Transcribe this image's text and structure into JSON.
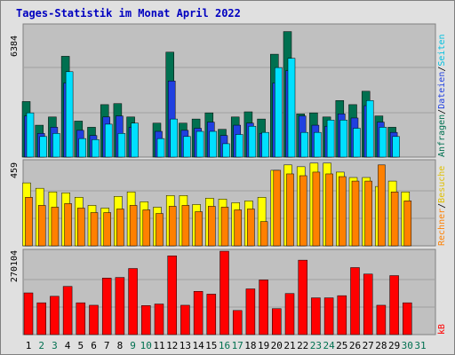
{
  "title": "Tages-Statistik im Monat April 2022",
  "colors": {
    "background": "#e0e0e0",
    "plot_bg": "#c0c0c0",
    "title": "#0000c0",
    "anfragen": "#007050",
    "dateien": "#2040e0",
    "seiten": "#00e0ff",
    "besuche": "#ffff00",
    "rechner": "#ff8000",
    "kb": "#ff0000",
    "weekend_label": "#007050",
    "weekday_label": "#000000"
  },
  "legend": {
    "panel1": [
      {
        "text": "Anfragen",
        "color": "#007050"
      },
      {
        "text": "/",
        "color": "#000000"
      },
      {
        "text": "Dateien",
        "color": "#2040e0"
      },
      {
        "text": "/",
        "color": "#000000"
      },
      {
        "text": "Seiten",
        "color": "#00c0e0"
      }
    ],
    "panel2": [
      {
        "text": "Rechner",
        "color": "#ff8000"
      },
      {
        "text": "/",
        "color": "#000000"
      },
      {
        "text": "Besuche",
        "color": "#e0c000"
      }
    ],
    "panel3": [
      {
        "text": "kB",
        "color": "#ff0000"
      }
    ]
  },
  "chart_data": [
    {
      "type": "bar",
      "ymax_label": "6384",
      "ylim": [
        0,
        6384
      ],
      "categories": [
        "1",
        "2",
        "3",
        "4",
        "5",
        "6",
        "7",
        "8",
        "9",
        "10",
        "11",
        "12",
        "13",
        "14",
        "15",
        "16",
        "17",
        "18",
        "19",
        "20",
        "21",
        "22",
        "23",
        "24",
        "25",
        "26",
        "27",
        "28",
        "29",
        "30",
        "31"
      ],
      "weekend": [
        false,
        true,
        true,
        false,
        false,
        false,
        false,
        false,
        true,
        true,
        false,
        false,
        false,
        false,
        false,
        true,
        true,
        false,
        false,
        false,
        false,
        false,
        true,
        true,
        false,
        false,
        false,
        false,
        false,
        true,
        true
      ],
      "series": [
        {
          "name": "Anfragen",
          "values": [
            2700,
            1550,
            1950,
            4900,
            1750,
            1450,
            2550,
            2600,
            1950,
            null,
            1650,
            5100,
            1650,
            1850,
            2150,
            1350,
            1950,
            2200,
            1850,
            5000,
            6100,
            2100,
            2150,
            1950,
            2750,
            2550,
            3200,
            2000,
            1450,
            null,
            null
          ]
        },
        {
          "name": "Dateien",
          "values": [
            2000,
            1150,
            1450,
            3600,
            1300,
            1050,
            1950,
            2000,
            1450,
            null,
            1250,
            3700,
            1300,
            1400,
            1700,
            1050,
            1550,
            1650,
            1150,
            3600,
            4200,
            2000,
            1550,
            1500,
            2100,
            1900,
            2500,
            1700,
            1200,
            null,
            null
          ]
        },
        {
          "name": "Seiten",
          "values": [
            2150,
            1000,
            1150,
            4150,
            900,
            850,
            1600,
            1150,
            1650,
            null,
            900,
            1850,
            1000,
            1250,
            1250,
            650,
            1100,
            1500,
            1200,
            4350,
            4800,
            1200,
            1200,
            1800,
            1800,
            1400,
            2750,
            1450,
            1000,
            null,
            null
          ]
        }
      ]
    },
    {
      "type": "bar",
      "ymax_label": "459",
      "ylim": [
        0,
        459
      ],
      "categories": [
        "1",
        "2",
        "3",
        "4",
        "5",
        "6",
        "7",
        "8",
        "9",
        "10",
        "11",
        "12",
        "13",
        "14",
        "15",
        "16",
        "17",
        "18",
        "19",
        "20",
        "21",
        "22",
        "23",
        "24",
        "25",
        "26",
        "27",
        "28",
        "29",
        "30",
        "31"
      ],
      "series": [
        {
          "name": "Besuche",
          "values": [
            350,
            320,
            300,
            295,
            270,
            225,
            210,
            275,
            300,
            245,
            215,
            280,
            280,
            230,
            265,
            260,
            240,
            250,
            270,
            420,
            450,
            440,
            460,
            460,
            410,
            380,
            380,
            330,
            360,
            300,
            null
          ]
        },
        {
          "name": "Rechner",
          "values": [
            270,
            225,
            215,
            235,
            210,
            185,
            185,
            205,
            225,
            200,
            180,
            220,
            225,
            190,
            220,
            215,
            200,
            205,
            135,
            420,
            400,
            390,
            410,
            400,
            385,
            360,
            360,
            450,
            300,
            250,
            null
          ]
        }
      ]
    },
    {
      "type": "bar",
      "ymax_label": "270104",
      "ylim": [
        0,
        270104
      ],
      "categories": [
        "1",
        "2",
        "3",
        "4",
        "5",
        "6",
        "7",
        "8",
        "9",
        "10",
        "11",
        "12",
        "13",
        "14",
        "15",
        "16",
        "17",
        "18",
        "19",
        "20",
        "21",
        "22",
        "23",
        "24",
        "25",
        "26",
        "27",
        "28",
        "29",
        "30",
        "31"
      ],
      "series": [
        {
          "name": "kB",
          "values": [
            135000,
            103000,
            124000,
            156000,
            103000,
            95000,
            183000,
            185000,
            214000,
            94000,
            99000,
            255000,
            95000,
            140000,
            131000,
            270000,
            78000,
            148000,
            177000,
            84000,
            133000,
            241000,
            119000,
            119000,
            126000,
            217000,
            196000,
            95000,
            191000,
            103000,
            null
          ]
        }
      ]
    }
  ]
}
